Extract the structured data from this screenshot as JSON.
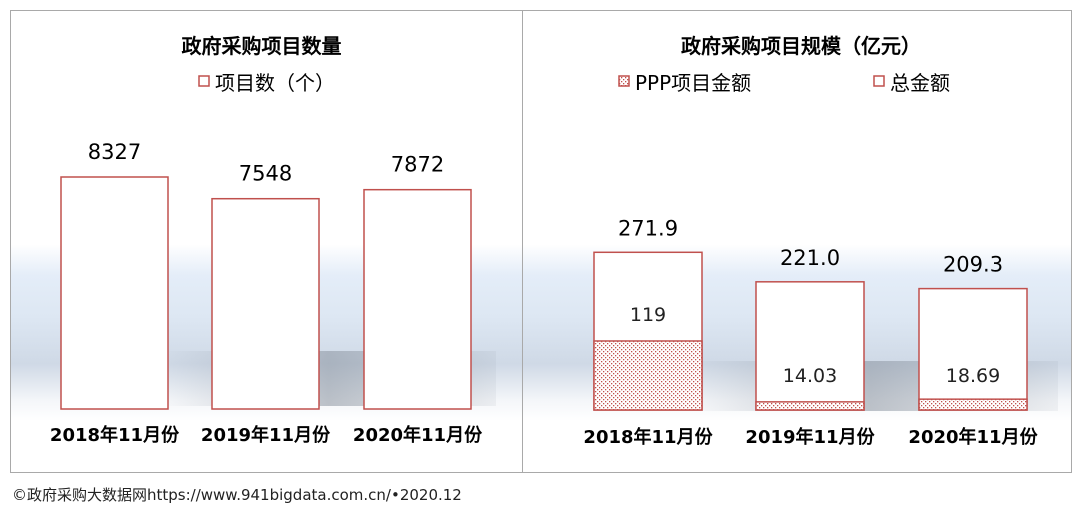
{
  "source_text": "©政府采购大数据网https://www.941bigdata.com.cn/•2020.12",
  "colors": {
    "bar_edge": "#c0504d",
    "fill": "#ffffff",
    "hatch": "#c0504d"
  },
  "chart_data": [
    {
      "type": "bar",
      "title": "政府采购项目数量",
      "legend": [
        "项目数（个）"
      ],
      "categories": [
        "2018年11月份",
        "2019年11月份",
        "2020年11月份"
      ],
      "series": [
        {
          "name": "项目数（个）",
          "values": [
            8327,
            7548,
            7872
          ],
          "labels": [
            "8327",
            "7548",
            "7872"
          ]
        }
      ]
    },
    {
      "type": "bar",
      "title": "政府采购项目规模（亿元）",
      "legend": [
        "PPP项目金额",
        "总金额"
      ],
      "categories": [
        "2018年11月份",
        "2019年11月份",
        "2020年11月份"
      ],
      "series": [
        {
          "name": "PPP项目金额",
          "values": [
            119,
            14.03,
            18.69
          ],
          "labels": [
            "119",
            "14.03",
            "18.69"
          ]
        },
        {
          "name": "总金额",
          "values": [
            271.9,
            221.0,
            209.3
          ],
          "labels": [
            "271.9",
            "221.0",
            "209.3"
          ]
        }
      ]
    }
  ]
}
